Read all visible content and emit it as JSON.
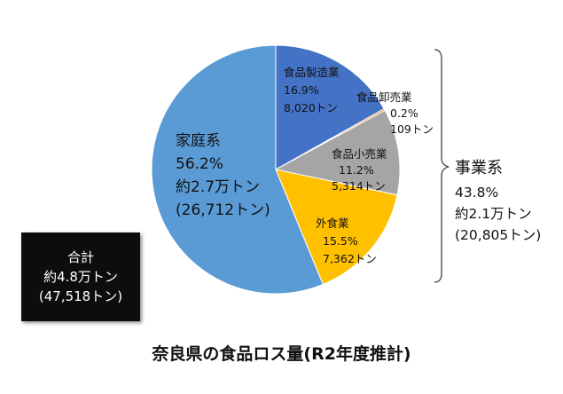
{
  "chart_data": {
    "type": "pie",
    "title": "奈良県の食品ロス量(R2年度推計)",
    "slices": [
      {
        "name": "食品製造業",
        "percent_label": "16.9%",
        "amount_label": "8,020トン",
        "value": 8020,
        "color": "#4472c4"
      },
      {
        "name": "食品卸売業",
        "percent_label": "0.2%",
        "amount_label": "109トン",
        "value": 109,
        "color": "#ed7d31"
      },
      {
        "name": "食品小売業",
        "percent_label": "11.2%",
        "amount_label": "5,314トン",
        "value": 5314,
        "color": "#a5a5a5"
      },
      {
        "name": "外食業",
        "percent_label": "15.5%",
        "amount_label": "7,362トン",
        "value": 7362,
        "color": "#ffc000"
      },
      {
        "name": "家庭系",
        "percent_label": "56.2%",
        "approx_label": "約2.7万トン",
        "amount_label": "(26,712トン)",
        "value": 26712,
        "color": "#5b9bd5"
      }
    ],
    "group": {
      "name": "事業系",
      "percent_label": "43.8%",
      "approx_label": "約2.1万トン",
      "amount_label": "(20,805トン)",
      "value": 20805
    },
    "total": {
      "label": "合計",
      "approx_label": "約4.8万トン",
      "amount_label": "(47,518トン)",
      "value": 47518
    }
  }
}
